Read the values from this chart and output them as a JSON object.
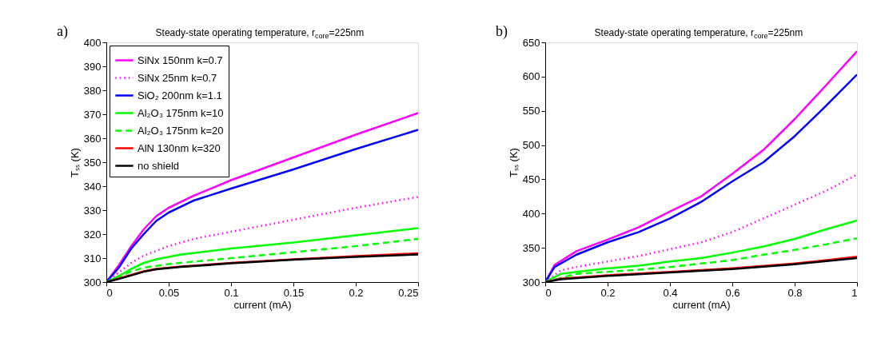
{
  "chart_data": [
    {
      "type": "line",
      "title": "Steady-state operating temperature, r$_{core}$=225nm",
      "xlabel": "current (mA)",
      "ylabel": "Tₛₛ (K)",
      "annotations": [
        "a)"
      ],
      "xlim": [
        0,
        0.25
      ],
      "xticks": [
        0,
        0.05,
        0.1,
        0.15,
        0.2,
        0.25
      ],
      "ylim": [
        300,
        400
      ],
      "yticks": [
        300,
        310,
        320,
        330,
        340,
        350,
        360,
        370,
        380,
        390,
        400
      ],
      "grid": false,
      "legend": "top left",
      "series": [
        {
          "name": "SiNx 150nm k=0.7",
          "color": "#ff00ff",
          "line_style": "solid",
          "x": [
            0,
            0.01,
            0.02,
            0.03,
            0.04,
            0.05,
            0.07,
            0.1,
            0.15,
            0.2,
            0.25
          ],
          "values": [
            300,
            307,
            315,
            322,
            327.5,
            331,
            336,
            342.5,
            352,
            361.5,
            370.5
          ]
        },
        {
          "name": "SiNx 25nm k=0.7",
          "color": "#ff00ff",
          "line_style": "dotted",
          "x": [
            0,
            0.01,
            0.02,
            0.03,
            0.05,
            0.07,
            0.1,
            0.15,
            0.2,
            0.25
          ],
          "values": [
            300,
            304,
            308,
            311,
            315,
            318,
            321,
            326,
            331,
            335.5
          ]
        },
        {
          "name": "SiO₂ 200nm k=1.1",
          "color": "#0000ff",
          "line_style": "solid",
          "x": [
            0,
            0.01,
            0.02,
            0.03,
            0.04,
            0.05,
            0.07,
            0.1,
            0.15,
            0.2,
            0.25
          ],
          "values": [
            300,
            306,
            314,
            320,
            325.5,
            329,
            334,
            339,
            347,
            355.5,
            363.5
          ]
        },
        {
          "name": "Al₂O₃ 175nm k=10",
          "color": "#00ff00",
          "line_style": "solid",
          "x": [
            0,
            0.01,
            0.02,
            0.03,
            0.04,
            0.05,
            0.06,
            0.1,
            0.15,
            0.2,
            0.25
          ],
          "values": [
            300,
            302.5,
            305.5,
            308,
            309.5,
            310.5,
            311.5,
            314,
            316.5,
            319.5,
            322.5
          ]
        },
        {
          "name": "Al₂O₃ 175nm k=20",
          "color": "#00ff00",
          "line_style": "dashed",
          "x": [
            0,
            0.01,
            0.02,
            0.03,
            0.05,
            0.1,
            0.15,
            0.2,
            0.25
          ],
          "values": [
            300,
            302,
            304.5,
            306,
            307.5,
            310,
            312.5,
            315,
            318
          ]
        },
        {
          "name": "AlN 130nm k=320",
          "color": "#ff0000",
          "line_style": "solid",
          "x": [
            0,
            0.01,
            0.02,
            0.03,
            0.04,
            0.06,
            0.1,
            0.15,
            0.2,
            0.25
          ],
          "values": [
            300,
            301.5,
            303,
            304.5,
            305.5,
            306.5,
            308,
            309.5,
            310.8,
            312
          ]
        },
        {
          "name": "no shield",
          "color": "#000000",
          "line_style": "solid",
          "x": [
            0,
            0.01,
            0.02,
            0.03,
            0.04,
            0.06,
            0.1,
            0.15,
            0.2,
            0.25
          ],
          "values": [
            300,
            301.3,
            302.8,
            304.3,
            305.3,
            306.3,
            307.8,
            309.3,
            310.5,
            311.5
          ]
        }
      ]
    },
    {
      "type": "line",
      "title": "Steady-state operating temperature, r$_{core}$=225nm",
      "xlabel": "current (mA)",
      "ylabel": "Tₛₛ (K)",
      "annotations": [
        "b)"
      ],
      "xlim": [
        0,
        1
      ],
      "xticks": [
        0,
        0.2,
        0.4,
        0.6,
        0.8,
        1
      ],
      "ylim": [
        300,
        650
      ],
      "yticks": [
        300,
        350,
        400,
        450,
        500,
        550,
        600,
        650
      ],
      "grid": false,
      "legend": "top left",
      "series": [
        {
          "name": "SiNx 150nm k=0.7",
          "color": "#ff00ff",
          "line_style": "solid",
          "x": [
            0,
            0.03,
            0.1,
            0.2,
            0.3,
            0.4,
            0.5,
            0.6,
            0.7,
            0.8,
            0.9,
            1
          ],
          "values": [
            300,
            325,
            345,
            362,
            380,
            403,
            425,
            458,
            493,
            538,
            587,
            637
          ]
        },
        {
          "name": "SiNx 25nm k=0.7",
          "color": "#ff00ff",
          "line_style": "dotted",
          "x": [
            0,
            0.05,
            0.1,
            0.2,
            0.3,
            0.4,
            0.5,
            0.6,
            0.7,
            0.8,
            0.9,
            1
          ],
          "values": [
            300,
            317,
            322,
            330,
            338,
            348,
            358,
            373,
            393,
            413,
            433,
            457
          ]
        },
        {
          "name": "SiO₂ 200nm k=1.1",
          "color": "#0000ff",
          "line_style": "solid",
          "x": [
            0,
            0.03,
            0.1,
            0.2,
            0.3,
            0.4,
            0.5,
            0.6,
            0.7,
            0.8,
            0.9,
            1
          ],
          "values": [
            300,
            322,
            340,
            358,
            373,
            393,
            417,
            447,
            475,
            513,
            557,
            603
          ]
        },
        {
          "name": "Al₂O₃ 175nm k=10",
          "color": "#00ff00",
          "line_style": "solid",
          "x": [
            0,
            0.05,
            0.1,
            0.2,
            0.3,
            0.4,
            0.5,
            0.6,
            0.7,
            0.8,
            0.9,
            1
          ],
          "values": [
            300,
            312,
            315,
            320,
            324,
            330,
            335,
            343,
            352,
            363,
            377,
            390
          ]
        },
        {
          "name": "Al₂O₃ 175nm k=20",
          "color": "#00ff00",
          "line_style": "dashed",
          "x": [
            0,
            0.1,
            0.2,
            0.3,
            0.4,
            0.5,
            0.6,
            0.7,
            0.8,
            0.9,
            1
          ],
          "values": [
            300,
            312,
            315,
            318,
            322,
            327,
            332,
            340,
            347,
            355,
            364
          ]
        },
        {
          "name": "AlN 130nm k=320",
          "color": "#ff0000",
          "line_style": "solid",
          "x": [
            0,
            0.05,
            0.2,
            0.4,
            0.6,
            0.8,
            1
          ],
          "values": [
            300,
            305,
            310,
            315,
            320,
            327,
            337
          ]
        },
        {
          "name": "no shield",
          "color": "#000000",
          "line_style": "solid",
          "x": [
            0,
            0.05,
            0.2,
            0.4,
            0.6,
            0.8,
            1
          ],
          "values": [
            300,
            304,
            309,
            314,
            319,
            326,
            335
          ]
        }
      ]
    }
  ]
}
